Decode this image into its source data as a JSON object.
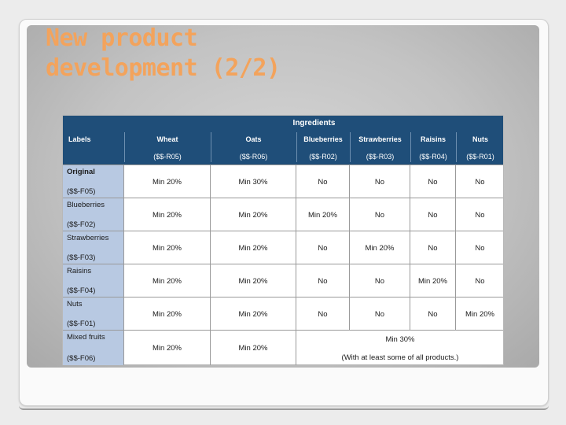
{
  "slide": {
    "title_line1": "New product",
    "title_line2": "development (2/2)"
  },
  "table": {
    "ingredients_label": "Ingredients",
    "labels_header": "Labels",
    "columns": [
      {
        "name": "Wheat",
        "code": "($$-R05)"
      },
      {
        "name": "Oats",
        "code": "($$-R06)"
      },
      {
        "name": "Blueberries",
        "code": "($$-R02)"
      },
      {
        "name": "Strawberries",
        "code": "($$-R03)"
      },
      {
        "name": "Raisins",
        "code": "($$-R04)"
      },
      {
        "name": "Nuts",
        "code": "($$-R01)"
      }
    ],
    "rows": [
      {
        "label": "Original",
        "code": "($$-F05)",
        "cells": [
          "Min 20%",
          "Min 30%",
          "No",
          "No",
          "No",
          "No"
        ]
      },
      {
        "label": "Blueberries",
        "code": "($$-F02)",
        "cells": [
          "Min 20%",
          "Min 20%",
          "Min 20%",
          "No",
          "No",
          "No"
        ]
      },
      {
        "label": "Strawberries",
        "code": "($$-F03)",
        "cells": [
          "Min 20%",
          "Min 20%",
          "No",
          "Min 20%",
          "No",
          "No"
        ]
      },
      {
        "label": "Raisins",
        "code": "($$-F04)",
        "cells": [
          "Min 20%",
          "Min 20%",
          "No",
          "No",
          "Min 20%",
          "No"
        ]
      },
      {
        "label": "Nuts",
        "code": "($$-F01)",
        "cells": [
          "Min 20%",
          "Min 20%",
          "No",
          "No",
          "No",
          "Min 20%"
        ]
      },
      {
        "label": "Mixed fruits",
        "code": "($$-F06)",
        "cells": [
          "Min 20%",
          "Min 20%"
        ],
        "merged_line1": "Min 30%",
        "merged_line2": "(With at least some of all products.)"
      }
    ]
  },
  "colors": {
    "title": "#f3a35c",
    "header_bg": "#1f4e79",
    "label_bg": "#b8c9e2"
  }
}
